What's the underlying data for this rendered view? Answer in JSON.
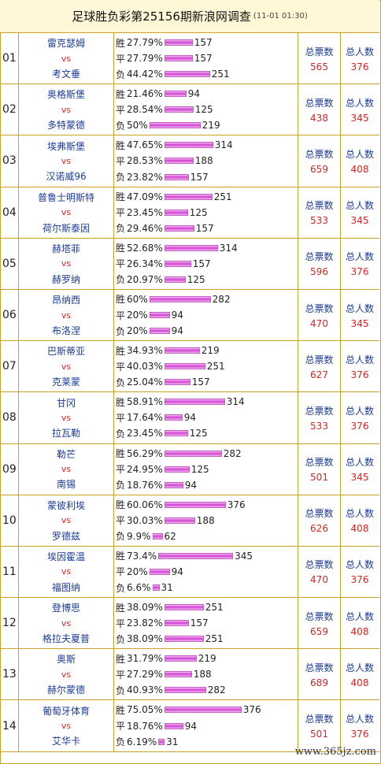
{
  "header": {
    "title": "足球胜负彩第25156期新浪网调查",
    "time": "(11-01 01:30)"
  },
  "labels": {
    "vs": "vs",
    "win": "胜",
    "draw": "平",
    "lose": "负",
    "total_votes": "总票数",
    "total_people": "总人数"
  },
  "watermark": "www.365jz.com",
  "rows": [
    {
      "idx": "01",
      "home": "雷克瑟姆",
      "away": "考文垂",
      "win": {
        "pct": "27.79%",
        "count": "157"
      },
      "draw": {
        "pct": "27.79%",
        "count": "157"
      },
      "lose": {
        "pct": "44.42%",
        "count": "251"
      },
      "votes": "565",
      "people": "376"
    },
    {
      "idx": "02",
      "home": "奥格斯堡",
      "away": "多特蒙德",
      "win": {
        "pct": "21.46%",
        "count": "94"
      },
      "draw": {
        "pct": "28.54%",
        "count": "125"
      },
      "lose": {
        "pct": "50%",
        "count": "219"
      },
      "votes": "438",
      "people": "345"
    },
    {
      "idx": "03",
      "home": "埃弗斯堡",
      "away": "汉诺威96",
      "win": {
        "pct": "47.65%",
        "count": "314"
      },
      "draw": {
        "pct": "28.53%",
        "count": "188"
      },
      "lose": {
        "pct": "23.82%",
        "count": "157"
      },
      "votes": "659",
      "people": "408"
    },
    {
      "idx": "04",
      "home": "普鲁士明斯特",
      "away": "荷尔斯泰因",
      "win": {
        "pct": "47.09%",
        "count": "251"
      },
      "draw": {
        "pct": "23.45%",
        "count": "125"
      },
      "lose": {
        "pct": "29.46%",
        "count": "157"
      },
      "votes": "533",
      "people": "345"
    },
    {
      "idx": "05",
      "home": "赫塔菲",
      "away": "赫罗纳",
      "win": {
        "pct": "52.68%",
        "count": "314"
      },
      "draw": {
        "pct": "26.34%",
        "count": "157"
      },
      "lose": {
        "pct": "20.97%",
        "count": "125"
      },
      "votes": "596",
      "people": "376"
    },
    {
      "idx": "06",
      "home": "昂纳西",
      "away": "布洛涅",
      "win": {
        "pct": "60%",
        "count": "282"
      },
      "draw": {
        "pct": "20%",
        "count": "94"
      },
      "lose": {
        "pct": "20%",
        "count": "94"
      },
      "votes": "470",
      "people": "345"
    },
    {
      "idx": "07",
      "home": "巴斯蒂亚",
      "away": "克莱蒙",
      "win": {
        "pct": "34.93%",
        "count": "219"
      },
      "draw": {
        "pct": "40.03%",
        "count": "251"
      },
      "lose": {
        "pct": "25.04%",
        "count": "157"
      },
      "votes": "627",
      "people": "376"
    },
    {
      "idx": "08",
      "home": "甘冈",
      "away": "拉瓦勒",
      "win": {
        "pct": "58.91%",
        "count": "314"
      },
      "draw": {
        "pct": "17.64%",
        "count": "94"
      },
      "lose": {
        "pct": "23.45%",
        "count": "125"
      },
      "votes": "533",
      "people": "376"
    },
    {
      "idx": "09",
      "home": "勒芒",
      "away": "南锡",
      "win": {
        "pct": "56.29%",
        "count": "282"
      },
      "draw": {
        "pct": "24.95%",
        "count": "125"
      },
      "lose": {
        "pct": "18.76%",
        "count": "94"
      },
      "votes": "501",
      "people": "345"
    },
    {
      "idx": "10",
      "home": "蒙彼利埃",
      "away": "罗德兹",
      "win": {
        "pct": "60.06%",
        "count": "376"
      },
      "draw": {
        "pct": "30.03%",
        "count": "188"
      },
      "lose": {
        "pct": "9.9%",
        "count": "62"
      },
      "votes": "626",
      "people": "408"
    },
    {
      "idx": "11",
      "home": "埃因霍温",
      "away": "福图纳",
      "win": {
        "pct": "73.4%",
        "count": "345"
      },
      "draw": {
        "pct": "20%",
        "count": "94"
      },
      "lose": {
        "pct": "6.6%",
        "count": "31"
      },
      "votes": "470",
      "people": "376"
    },
    {
      "idx": "12",
      "home": "登博思",
      "away": "格拉夫夏普",
      "win": {
        "pct": "38.09%",
        "count": "251"
      },
      "draw": {
        "pct": "23.82%",
        "count": "157"
      },
      "lose": {
        "pct": "38.09%",
        "count": "251"
      },
      "votes": "659",
      "people": "408"
    },
    {
      "idx": "13",
      "home": "奥斯",
      "away": "赫尔蒙德",
      "win": {
        "pct": "31.79%",
        "count": "219"
      },
      "draw": {
        "pct": "27.29%",
        "count": "188"
      },
      "lose": {
        "pct": "40.93%",
        "count": "282"
      },
      "votes": "689",
      "people": "408"
    },
    {
      "idx": "14",
      "home": "葡萄牙体育",
      "away": "艾华卡",
      "win": {
        "pct": "75.05%",
        "count": "376"
      },
      "draw": {
        "pct": "18.76%",
        "count": "94"
      },
      "lose": {
        "pct": "6.19%",
        "count": "31"
      },
      "votes": "501",
      "people": "376"
    }
  ]
}
